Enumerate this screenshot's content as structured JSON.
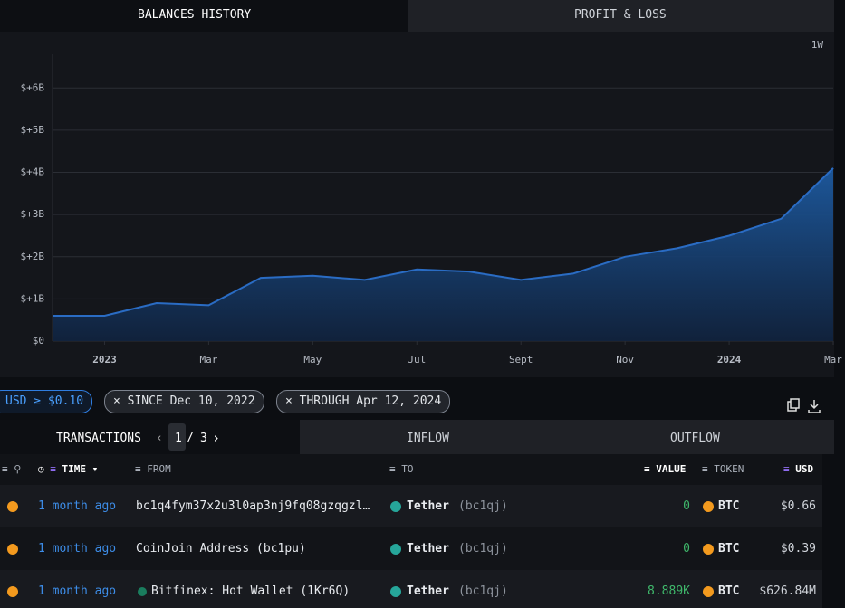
{
  "tabs": [
    "BALANCES HISTORY",
    "PROFIT & LOSS"
  ],
  "chart_data": {
    "type": "area",
    "interval": "1W",
    "x": [
      "2022-12",
      "2023-01",
      "2023-02",
      "2023-03",
      "2023-04",
      "2023-05",
      "2023-06",
      "2023-07",
      "2023-08",
      "2023-09",
      "2023-10",
      "2023-11",
      "2023-12",
      "2024-01",
      "2024-02",
      "2024-03"
    ],
    "values": [
      0.6,
      0.6,
      0.9,
      0.85,
      1.5,
      1.55,
      1.45,
      1.7,
      1.65,
      1.45,
      1.6,
      2.0,
      2.2,
      2.5,
      2.9,
      4.1
    ],
    "color": "#2a6cc4",
    "xlim": [
      "2022-12",
      "2024-03"
    ],
    "xticks": [
      {
        "value": "2023-01",
        "label": "2023"
      },
      {
        "value": "2023-03",
        "label": "Mar"
      },
      {
        "value": "2023-05",
        "label": "May"
      },
      {
        "value": "2023-07",
        "label": "Jul"
      },
      {
        "value": "2023-09",
        "label": "Sept"
      },
      {
        "value": "2023-11",
        "label": "Nov"
      },
      {
        "value": "2024-01",
        "label": "2024"
      },
      {
        "value": "2024-03",
        "label": "Mar"
      }
    ],
    "ylim": [
      0,
      6.8
    ],
    "yticks": [
      {
        "value": 0,
        "label": "$0"
      },
      {
        "value": 1,
        "label": "$+1B"
      },
      {
        "value": 2,
        "label": "$+2B"
      },
      {
        "value": 3,
        "label": "$+3B"
      },
      {
        "value": 4,
        "label": "$+4B"
      },
      {
        "value": 5,
        "label": "$+5B"
      },
      {
        "value": 6,
        "label": "$+6B"
      }
    ],
    "grid": true
  },
  "filters": [
    "USD ≥ $0.10",
    "SINCE Dec 10, 2022",
    "THROUGH Apr 12, 2024"
  ],
  "table_tabs": [
    "TRANSACTIONS",
    "INFLOW",
    "OUTFLOW"
  ],
  "pagination": {
    "current": 1,
    "total": 3
  },
  "table": {
    "columns": [
      "TIME",
      "FROM",
      "TO",
      "VALUE",
      "TOKEN",
      "USD"
    ],
    "rows": [
      {
        "time": "1 month ago",
        "from": "bc1q4fym37x2u3l0ap3nj9fq08gzqgzl…",
        "to": "Tether",
        "to_address": "(bc1qj)",
        "value": "0",
        "token": "BTC",
        "usd": "$0.66"
      },
      {
        "time": "1 month ago",
        "from": "CoinJoin Address (bc1pu)",
        "to": "Tether",
        "to_address": "(bc1qj)",
        "value": "0",
        "token": "BTC",
        "usd": "$0.39"
      },
      {
        "time": "1 month ago",
        "from": "Bitfinex: Hot Wallet (1Kr6Q)",
        "to": "Tether",
        "to_address": "(bc1qj)",
        "value": "8.889K",
        "token": "BTC",
        "usd": "$626.84M"
      }
    ]
  }
}
